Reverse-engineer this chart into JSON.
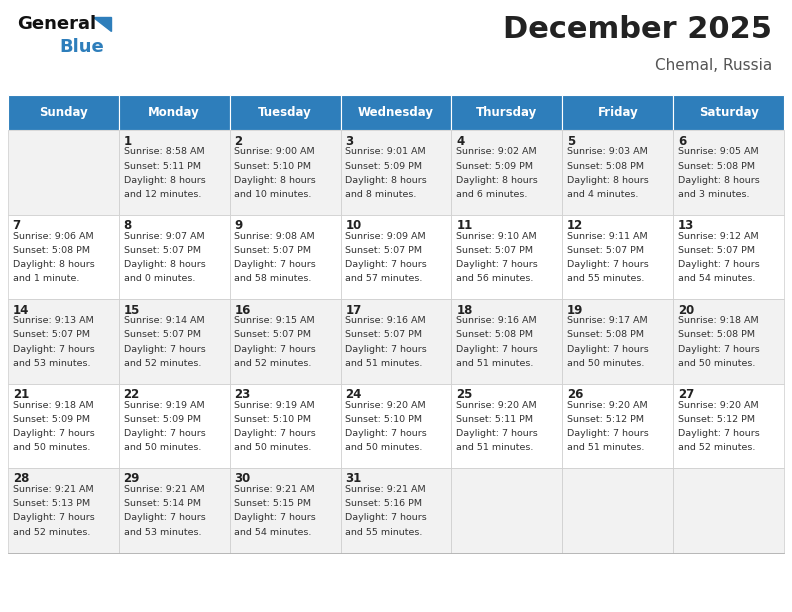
{
  "title": "December 2025",
  "subtitle": "Chemal, Russia",
  "header_color": "#2e7ebb",
  "header_text_color": "#ffffff",
  "cell_bg_even": "#f2f2f2",
  "cell_bg_odd": "#ffffff",
  "text_color": "#333333",
  "border_color": "#aaaaaa",
  "days_of_week": [
    "Sunday",
    "Monday",
    "Tuesday",
    "Wednesday",
    "Thursday",
    "Friday",
    "Saturday"
  ],
  "weeks": [
    [
      {
        "day": "",
        "sunrise": "",
        "sunset": "",
        "daylight": ""
      },
      {
        "day": "1",
        "sunrise": "8:58 AM",
        "sunset": "5:11 PM",
        "daylight": "8 hours\nand 12 minutes."
      },
      {
        "day": "2",
        "sunrise": "9:00 AM",
        "sunset": "5:10 PM",
        "daylight": "8 hours\nand 10 minutes."
      },
      {
        "day": "3",
        "sunrise": "9:01 AM",
        "sunset": "5:09 PM",
        "daylight": "8 hours\nand 8 minutes."
      },
      {
        "day": "4",
        "sunrise": "9:02 AM",
        "sunset": "5:09 PM",
        "daylight": "8 hours\nand 6 minutes."
      },
      {
        "day": "5",
        "sunrise": "9:03 AM",
        "sunset": "5:08 PM",
        "daylight": "8 hours\nand 4 minutes."
      },
      {
        "day": "6",
        "sunrise": "9:05 AM",
        "sunset": "5:08 PM",
        "daylight": "8 hours\nand 3 minutes."
      }
    ],
    [
      {
        "day": "7",
        "sunrise": "9:06 AM",
        "sunset": "5:08 PM",
        "daylight": "8 hours\nand 1 minute."
      },
      {
        "day": "8",
        "sunrise": "9:07 AM",
        "sunset": "5:07 PM",
        "daylight": "8 hours\nand 0 minutes."
      },
      {
        "day": "9",
        "sunrise": "9:08 AM",
        "sunset": "5:07 PM",
        "daylight": "7 hours\nand 58 minutes."
      },
      {
        "day": "10",
        "sunrise": "9:09 AM",
        "sunset": "5:07 PM",
        "daylight": "7 hours\nand 57 minutes."
      },
      {
        "day": "11",
        "sunrise": "9:10 AM",
        "sunset": "5:07 PM",
        "daylight": "7 hours\nand 56 minutes."
      },
      {
        "day": "12",
        "sunrise": "9:11 AM",
        "sunset": "5:07 PM",
        "daylight": "7 hours\nand 55 minutes."
      },
      {
        "day": "13",
        "sunrise": "9:12 AM",
        "sunset": "5:07 PM",
        "daylight": "7 hours\nand 54 minutes."
      }
    ],
    [
      {
        "day": "14",
        "sunrise": "9:13 AM",
        "sunset": "5:07 PM",
        "daylight": "7 hours\nand 53 minutes."
      },
      {
        "day": "15",
        "sunrise": "9:14 AM",
        "sunset": "5:07 PM",
        "daylight": "7 hours\nand 52 minutes."
      },
      {
        "day": "16",
        "sunrise": "9:15 AM",
        "sunset": "5:07 PM",
        "daylight": "7 hours\nand 52 minutes."
      },
      {
        "day": "17",
        "sunrise": "9:16 AM",
        "sunset": "5:07 PM",
        "daylight": "7 hours\nand 51 minutes."
      },
      {
        "day": "18",
        "sunrise": "9:16 AM",
        "sunset": "5:08 PM",
        "daylight": "7 hours\nand 51 minutes."
      },
      {
        "day": "19",
        "sunrise": "9:17 AM",
        "sunset": "5:08 PM",
        "daylight": "7 hours\nand 50 minutes."
      },
      {
        "day": "20",
        "sunrise": "9:18 AM",
        "sunset": "5:08 PM",
        "daylight": "7 hours\nand 50 minutes."
      }
    ],
    [
      {
        "day": "21",
        "sunrise": "9:18 AM",
        "sunset": "5:09 PM",
        "daylight": "7 hours\nand 50 minutes."
      },
      {
        "day": "22",
        "sunrise": "9:19 AM",
        "sunset": "5:09 PM",
        "daylight": "7 hours\nand 50 minutes."
      },
      {
        "day": "23",
        "sunrise": "9:19 AM",
        "sunset": "5:10 PM",
        "daylight": "7 hours\nand 50 minutes."
      },
      {
        "day": "24",
        "sunrise": "9:20 AM",
        "sunset": "5:10 PM",
        "daylight": "7 hours\nand 50 minutes."
      },
      {
        "day": "25",
        "sunrise": "9:20 AM",
        "sunset": "5:11 PM",
        "daylight": "7 hours\nand 51 minutes."
      },
      {
        "day": "26",
        "sunrise": "9:20 AM",
        "sunset": "5:12 PM",
        "daylight": "7 hours\nand 51 minutes."
      },
      {
        "day": "27",
        "sunrise": "9:20 AM",
        "sunset": "5:12 PM",
        "daylight": "7 hours\nand 52 minutes."
      }
    ],
    [
      {
        "day": "28",
        "sunrise": "9:21 AM",
        "sunset": "5:13 PM",
        "daylight": "7 hours\nand 52 minutes."
      },
      {
        "day": "29",
        "sunrise": "9:21 AM",
        "sunset": "5:14 PM",
        "daylight": "7 hours\nand 53 minutes."
      },
      {
        "day": "30",
        "sunrise": "9:21 AM",
        "sunset": "5:15 PM",
        "daylight": "7 hours\nand 54 minutes."
      },
      {
        "day": "31",
        "sunrise": "9:21 AM",
        "sunset": "5:16 PM",
        "daylight": "7 hours\nand 55 minutes."
      },
      {
        "day": "",
        "sunrise": "",
        "sunset": "",
        "daylight": ""
      },
      {
        "day": "",
        "sunrise": "",
        "sunset": "",
        "daylight": ""
      },
      {
        "day": "",
        "sunrise": "",
        "sunset": "",
        "daylight": ""
      }
    ]
  ]
}
